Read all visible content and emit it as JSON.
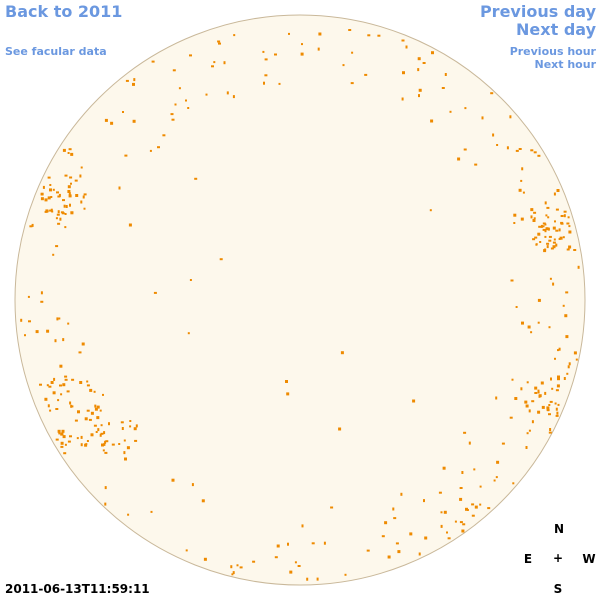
{
  "links": {
    "back": "Back to 2011",
    "facular": "See facular data",
    "previous_day": "Previous day",
    "next_day": "Next day",
    "previous_hour": "Previous hour",
    "next_hour": "Next hour"
  },
  "timestamp": "2011-06-13T11:59:11",
  "compass": {
    "north": "N",
    "east": "E",
    "center": "+",
    "west": "W",
    "south": "S"
  }
}
